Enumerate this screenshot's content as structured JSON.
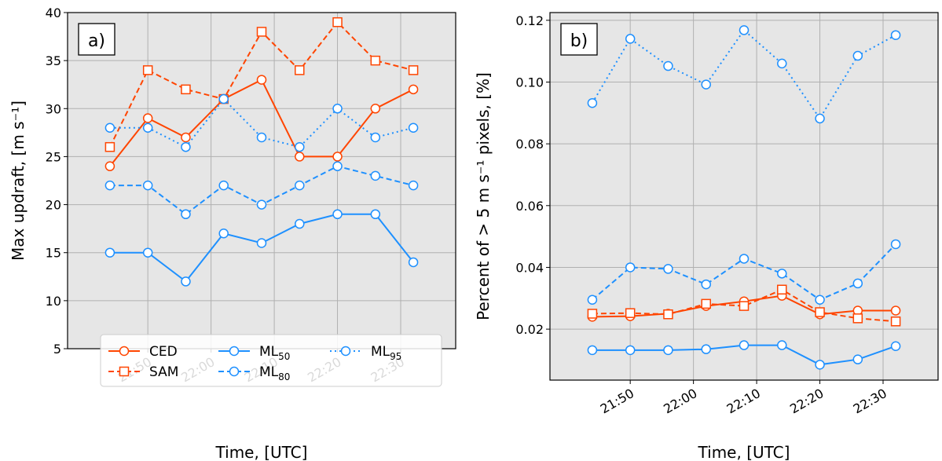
{
  "colors": {
    "cesm": "#ff4500",
    "ml": "#1e90ff"
  },
  "chart_data": [
    {
      "panel": "a)",
      "type": "line",
      "x": [
        "21:44",
        "21:50",
        "21:56",
        "22:02",
        "22:08",
        "22:14",
        "22:20",
        "22:26",
        "22:32"
      ],
      "xticks": [
        "21:50",
        "22:00",
        "22:10",
        "22:20",
        "22:30"
      ],
      "ylabel": "Max updraft, [m s⁻¹]",
      "xlabel": "Time, [UTC]",
      "ylim": [
        5,
        40
      ],
      "yticks": [
        "5",
        "10",
        "15",
        "20",
        "25",
        "30",
        "35",
        "40"
      ],
      "grid": true,
      "legend": "lower-center",
      "series": [
        {
          "name": "CED",
          "values": [
            24,
            29,
            27,
            31,
            33,
            25,
            25,
            30,
            32
          ]
        },
        {
          "name": "SAM",
          "values": [
            26,
            34,
            32,
            31,
            38,
            34,
            39,
            35,
            34
          ]
        },
        {
          "name": "ML50",
          "values": [
            15,
            15,
            12,
            17,
            16,
            18,
            19,
            19,
            14
          ]
        },
        {
          "name": "ML80",
          "values": [
            22,
            22,
            19,
            22,
            20,
            22,
            24,
            23,
            22
          ]
        },
        {
          "name": "ML95",
          "values": [
            28,
            28,
            26,
            31,
            27,
            26,
            30,
            27,
            28
          ]
        }
      ]
    },
    {
      "panel": "b)",
      "type": "line",
      "x": [
        "21:44",
        "21:50",
        "21:56",
        "22:02",
        "22:08",
        "22:14",
        "22:20",
        "22:26",
        "22:32"
      ],
      "xticks": [
        "21:50",
        "22:00",
        "22:10",
        "22:20",
        "22:30"
      ],
      "ylabel": "Percent of  >  5 m s⁻¹ pixels, [%]",
      "xlabel": "Time, [UTC]",
      "ylim": [
        0.0035,
        0.1225
      ],
      "yticks": [
        "0.02",
        "0.04",
        "0.06",
        "0.08",
        "0.10",
        "0.12"
      ],
      "grid": true,
      "series": [
        {
          "name": "CED",
          "values": [
            0.024,
            0.0242,
            0.025,
            0.0275,
            0.029,
            0.0308,
            0.0248,
            0.026,
            0.026
          ]
        },
        {
          "name": "SAM",
          "values": [
            0.025,
            0.0252,
            0.0248,
            0.0282,
            0.0275,
            0.0328,
            0.0255,
            0.0235,
            0.0225
          ]
        },
        {
          "name": "ML50",
          "values": [
            0.0132,
            0.0132,
            0.0132,
            0.0135,
            0.0148,
            0.0148,
            0.0085,
            0.0102,
            0.0145
          ]
        },
        {
          "name": "ML80",
          "values": [
            0.0295,
            0.04,
            0.0395,
            0.0345,
            0.0428,
            0.038,
            0.0295,
            0.0348,
            0.0475
          ]
        },
        {
          "name": "ML95",
          "values": [
            0.0932,
            0.114,
            0.1052,
            0.0992,
            0.1168,
            0.106,
            0.0882,
            0.1085,
            0.1152
          ]
        }
      ]
    }
  ]
}
